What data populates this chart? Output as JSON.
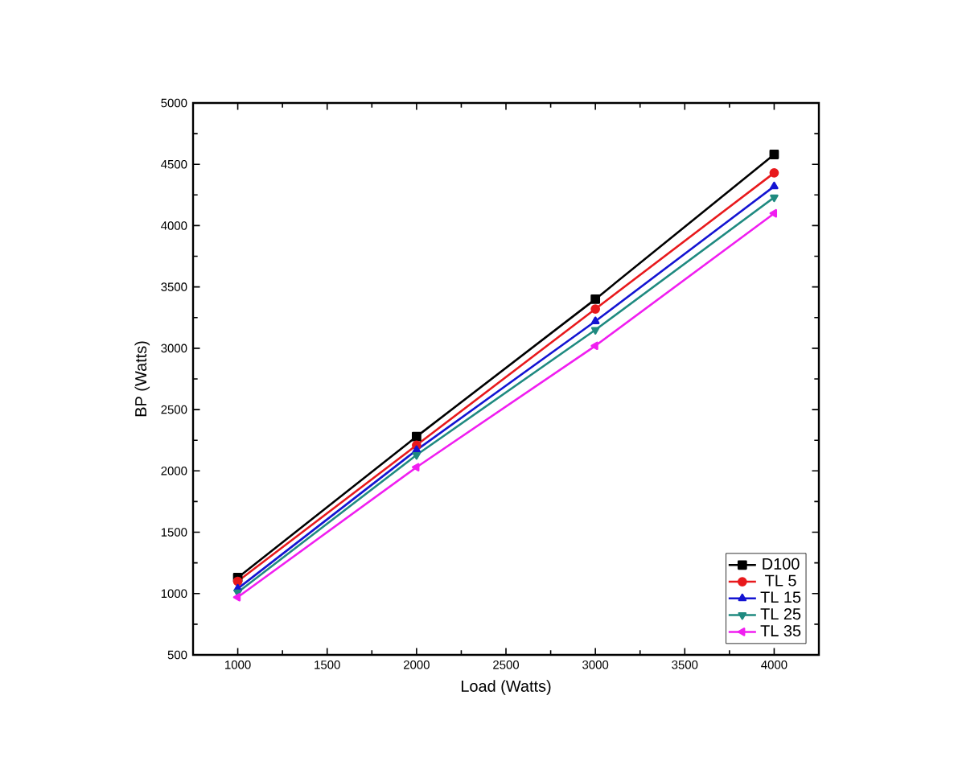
{
  "chart_data": {
    "type": "line",
    "xlabel": "Load (Watts)",
    "ylabel": "BP (Watts)",
    "x": [
      1000,
      2000,
      3000,
      4000
    ],
    "series": [
      {
        "name": "D100",
        "color": "#000000",
        "marker": "square",
        "values": [
          1130,
          2280,
          3400,
          4580
        ]
      },
      {
        "name": "TL 5",
        "color": "#e8191c",
        "marker": "circle",
        "values": [
          1100,
          2210,
          3320,
          4430
        ]
      },
      {
        "name": "TL 15",
        "color": "#1414d2",
        "marker": "triangle",
        "values": [
          1040,
          2170,
          3220,
          4320
        ]
      },
      {
        "name": "TL 25",
        "color": "#1f8a80",
        "marker": "triangle down",
        "values": [
          1010,
          2130,
          3150,
          4230
        ]
      },
      {
        "name": "TL 35",
        "color": "#f01ef0",
        "marker": "triangle left",
        "values": [
          970,
          2030,
          3020,
          4100
        ]
      }
    ],
    "xlim": [
      750,
      4250
    ],
    "xticks": [
      1000,
      1500,
      2000,
      2500,
      3000,
      3500,
      4000
    ],
    "ylim": [
      500,
      5000
    ],
    "yticks": [
      500,
      1000,
      1500,
      2000,
      2500,
      3000,
      3500,
      4000,
      4500,
      5000
    ],
    "legend": "bottom right",
    "grid": false,
    "line_style": "solid"
  }
}
